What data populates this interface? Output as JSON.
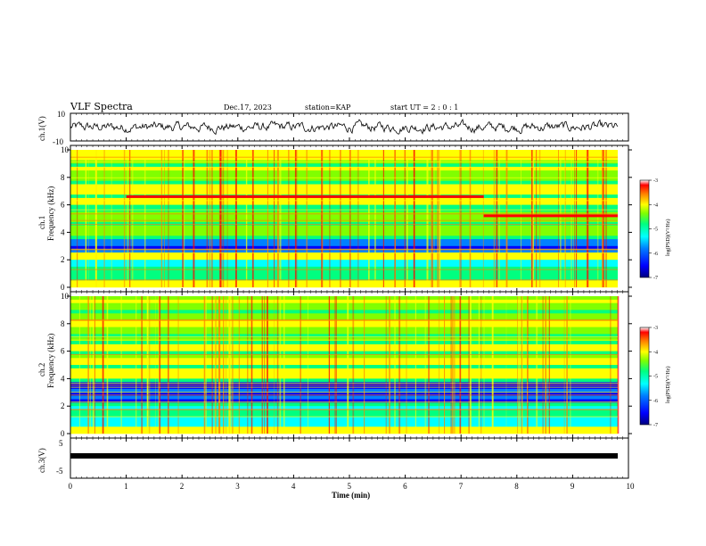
{
  "header": {
    "title": "VLF Spectra",
    "date": "Dec.17, 2023",
    "station": "station=KAP",
    "start": "start  UT  =   2 : 0  : 1"
  },
  "chart_data": [
    {
      "type": "line",
      "panel": "ch1-waveform",
      "ylabel": "ch.1(V)",
      "ylim": [
        -10,
        10
      ],
      "ytick_labels": [
        "10",
        "-10"
      ],
      "xlim": [
        0,
        10
      ],
      "approx_range": [
        -6,
        6
      ],
      "color": "#000000"
    },
    {
      "type": "heatmap",
      "panel": "ch1-spectrogram",
      "ylabel": "ch.1\nFrequency (kHz)",
      "ylim": [
        0,
        10
      ],
      "ytick_labels": [
        "0",
        "2",
        "4",
        "6",
        "8",
        "10"
      ],
      "xlim": [
        0,
        9.8
      ],
      "colorbar": {
        "label": "log(PSD)(V²/Hz)",
        "range": [
          -7,
          -3
        ],
        "tick_labels": [
          "-3",
          "-4",
          "-5",
          "-6",
          "-7"
        ]
      },
      "features": [
        {
          "kind": "red narrowband line",
          "freq_khz": 6.6,
          "t_start_min": 1.0,
          "t_end_min": 7.4
        },
        {
          "kind": "red narrowband line",
          "freq_khz": 5.2,
          "t_start_min": 7.4,
          "t_end_min": 9.8
        },
        {
          "kind": "blue low-intensity band",
          "freq_khz_range": [
            2.6,
            3.6
          ]
        }
      ]
    },
    {
      "type": "heatmap",
      "panel": "ch2-spectrogram",
      "ylabel": "ch.2\nFrequency (kHz)",
      "ylim": [
        0,
        10
      ],
      "ytick_labels": [
        "0",
        "2",
        "4",
        "6",
        "8",
        "10"
      ],
      "xlim": [
        0,
        9.8
      ],
      "colorbar": {
        "label": "log(PSD)(V²/Hz)",
        "range": [
          -7,
          -3
        ],
        "tick_labels": [
          "-3",
          "-4",
          "-5",
          "-6",
          "-7"
        ]
      },
      "features": [
        {
          "kind": "blue low-intensity band",
          "freq_khz_range": [
            2.2,
            3.8
          ]
        }
      ]
    },
    {
      "type": "line",
      "panel": "ch3-waveform",
      "ylabel": "ch.3(V)",
      "ylim": [
        -5,
        5
      ],
      "ytick_labels": [
        "5",
        "-5"
      ],
      "xlim": [
        0,
        9.8
      ],
      "approx_value": 0,
      "color": "#000000"
    }
  ],
  "xaxis": {
    "label": "Time (min)",
    "tick_labels": [
      "0",
      "1",
      "2",
      "3",
      "4",
      "5",
      "6",
      "7",
      "8",
      "9",
      "10"
    ],
    "range": [
      0,
      10
    ]
  },
  "colors": {
    "colormap": [
      "#000080",
      "#0000ff",
      "#0080ff",
      "#00ffff",
      "#00ff80",
      "#80ff00",
      "#ffff00",
      "#ff8000",
      "#ff0000",
      "#ffffff"
    ]
  }
}
